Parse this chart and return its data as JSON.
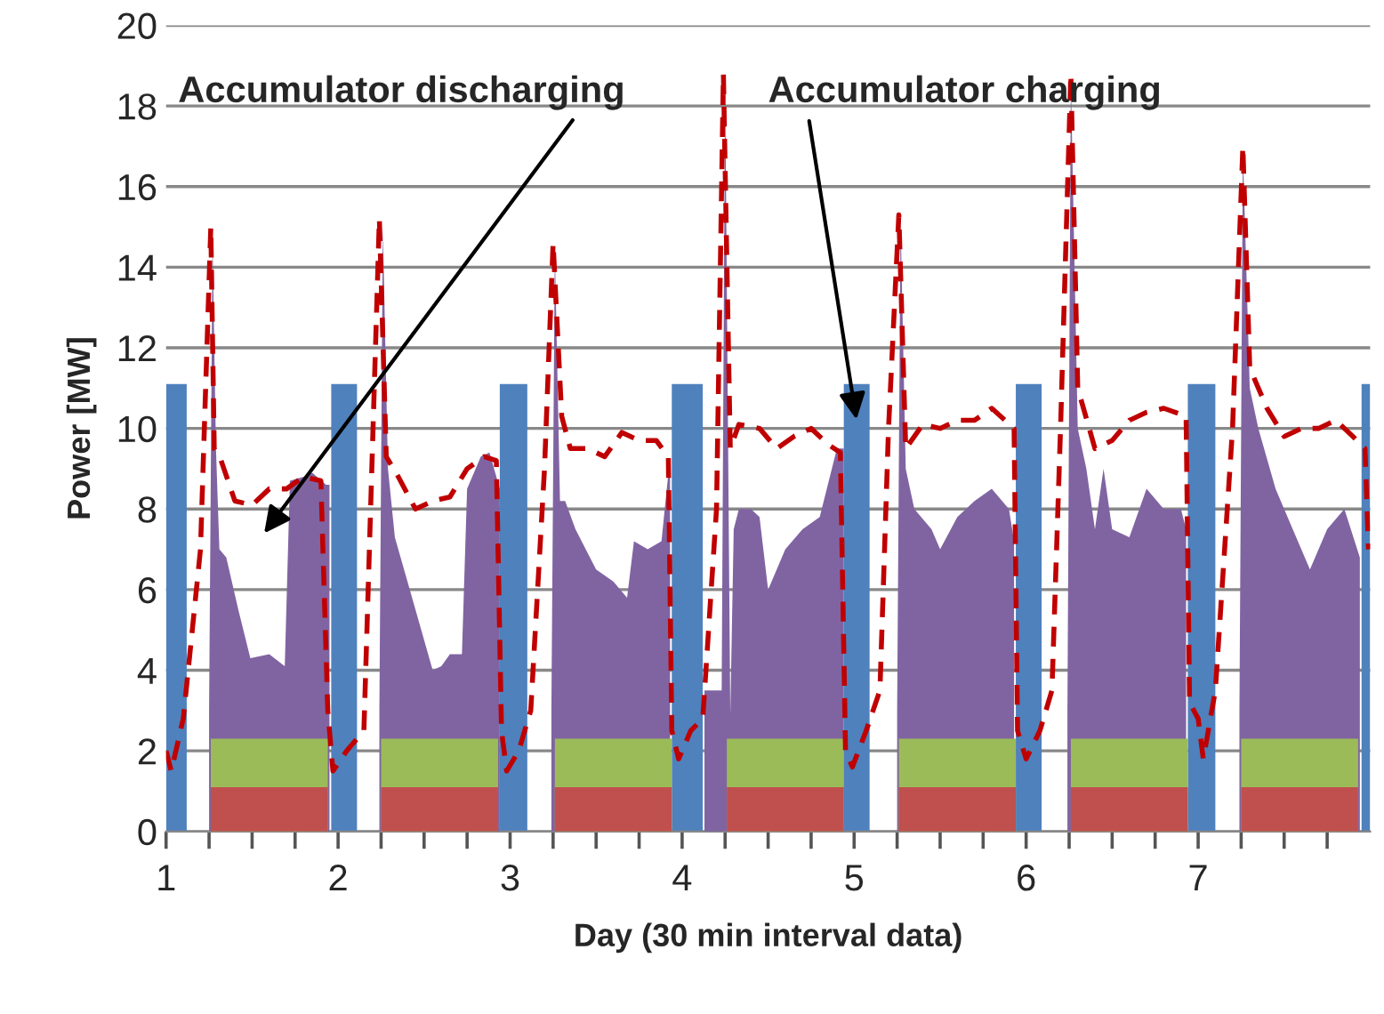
{
  "chart_data": {
    "type": "area",
    "xlabel": "Day (30 min interval data)",
    "ylabel": "Power [MW]",
    "xlim": [
      1,
      8
    ],
    "ylim": [
      0,
      20
    ],
    "yticks": [
      0,
      2,
      4,
      6,
      8,
      10,
      12,
      14,
      16,
      18,
      20
    ],
    "xticks": [
      1,
      {
        "value": 1.25,
        "label": null
      },
      {
        "value": 1.5,
        "label": null
      },
      {
        "value": 1.75,
        "label": null
      },
      2,
      {
        "value": 2.25,
        "label": null
      },
      {
        "value": 2.5,
        "label": null
      },
      {
        "value": 2.75,
        "label": null
      },
      3,
      {
        "value": 3.25,
        "label": null
      },
      {
        "value": 3.5,
        "label": null
      },
      {
        "value": 3.75,
        "label": null
      },
      4,
      {
        "value": 4.25,
        "label": null
      },
      {
        "value": 4.5,
        "label": null
      },
      {
        "value": 4.75,
        "label": null
      },
      5,
      {
        "value": 5.25,
        "label": null
      },
      {
        "value": 5.5,
        "label": null
      },
      {
        "value": 5.75,
        "label": null
      },
      6,
      {
        "value": 6.25,
        "label": null
      },
      {
        "value": 6.5,
        "label": null
      },
      {
        "value": 6.75,
        "label": null
      },
      7,
      {
        "value": 7.25,
        "label": null
      },
      {
        "value": 7.5,
        "label": null
      },
      {
        "value": 7.75,
        "label": null
      }
    ],
    "grid": "y",
    "line_style": "dashed",
    "series": [
      {
        "color": "#4f81bd",
        "x": [
          1.0,
          1.12,
          1.5,
          1.96,
          2.11,
          2.5,
          2.94,
          3.1,
          3.5,
          3.94,
          4.12,
          4.5,
          4.94,
          5.09,
          5.5,
          5.94,
          6.09,
          6.5,
          6.94,
          7.1,
          7.5,
          7.95,
          8.0
        ],
        "values": [
          11.1,
          11.1,
          null,
          11.1,
          11.1,
          null,
          11.1,
          11.1,
          null,
          11.1,
          11.1,
          null,
          11.1,
          11.1,
          null,
          11.1,
          11.1,
          null,
          11.1,
          11.1,
          null,
          11.1,
          11.1
        ]
      },
      {
        "color": "#8064a2",
        "x": [
          1.25,
          1.27,
          1.29,
          1.31,
          1.35,
          1.42,
          1.49,
          1.6,
          1.69,
          1.72,
          1.8,
          1.85,
          1.93,
          1.95,
          2.1,
          2.24,
          2.26,
          2.29,
          2.33,
          2.45,
          2.55,
          2.6,
          2.65,
          2.72,
          2.75,
          2.83,
          2.88,
          2.94,
          3.0,
          3.24,
          3.26,
          3.29,
          3.32,
          3.38,
          3.5,
          3.6,
          3.68,
          3.72,
          3.8,
          3.88,
          3.93,
          4.0,
          4.13,
          4.23,
          4.25,
          4.28,
          4.3,
          4.33,
          4.4,
          4.45,
          4.5,
          4.6,
          4.7,
          4.8,
          4.9,
          4.94,
          5.0,
          5.25,
          5.27,
          5.3,
          5.35,
          5.45,
          5.5,
          5.6,
          5.7,
          5.8,
          5.9,
          5.93,
          6.0,
          6.24,
          6.26,
          6.3,
          6.35,
          6.4,
          6.45,
          6.5,
          6.6,
          6.7,
          6.8,
          6.9,
          6.93,
          7.0,
          7.24,
          7.26,
          7.3,
          7.35,
          7.45,
          7.55,
          7.65,
          7.75,
          7.85,
          7.94
        ],
        "values": [
          3.0,
          14.7,
          9.5,
          7.0,
          6.8,
          5.5,
          4.3,
          4.4,
          4.1,
          8.7,
          8.8,
          8.9,
          8.6,
          8.6,
          null,
          3.0,
          15.0,
          9.0,
          7.3,
          5.5,
          4.0,
          4.1,
          4.4,
          4.4,
          8.5,
          9.3,
          9.4,
          8.5,
          null,
          3.0,
          14.5,
          8.2,
          8.2,
          7.5,
          6.5,
          6.2,
          5.8,
          7.2,
          7.0,
          7.2,
          9.3,
          null,
          3.5,
          3.5,
          18.8,
          2.9,
          7.5,
          8.0,
          8.0,
          7.8,
          6.0,
          7.0,
          7.5,
          7.8,
          9.5,
          9.5,
          null,
          3.0,
          15.2,
          9.0,
          8.0,
          7.5,
          7.0,
          7.8,
          8.2,
          8.5,
          8.0,
          7.2,
          null,
          3.0,
          18.7,
          10.0,
          9.0,
          7.5,
          9.0,
          7.5,
          7.3,
          8.5,
          8.0,
          8.0,
          7.5,
          null,
          3.0,
          16.9,
          11.0,
          10.0,
          8.5,
          7.5,
          6.5,
          7.5,
          8.0,
          6.8
        ]
      },
      {
        "color": "#9bbb59",
        "x": [
          1.26,
          1.94,
          2.1,
          2.25,
          2.93,
          3.1,
          3.26,
          3.94,
          4.1,
          4.26,
          4.94,
          5.1,
          5.26,
          5.94,
          6.1,
          6.26,
          6.94,
          7.1,
          7.25,
          7.93
        ],
        "values": [
          2.3,
          2.3,
          null,
          2.3,
          2.3,
          null,
          2.3,
          2.3,
          null,
          2.3,
          2.3,
          null,
          2.3,
          2.3,
          null,
          2.3,
          2.3,
          null,
          2.3,
          2.3
        ]
      },
      {
        "color": "#c0504d",
        "x": [
          1.26,
          1.94,
          2.1,
          2.25,
          2.93,
          3.1,
          3.26,
          3.94,
          4.1,
          4.26,
          4.94,
          5.1,
          5.26,
          5.94,
          6.1,
          6.26,
          6.94,
          7.1,
          7.25,
          7.93
        ],
        "values": [
          1.1,
          1.1,
          null,
          1.1,
          1.1,
          null,
          1.1,
          1.1,
          null,
          1.1,
          1.1,
          null,
          1.1,
          1.1,
          null,
          1.1,
          1.1,
          null,
          1.1,
          1.1
        ]
      },
      {
        "type": "line",
        "color": "#c00000",
        "x": [
          1.0,
          1.03,
          1.1,
          1.2,
          1.26,
          1.28,
          1.32,
          1.4,
          1.5,
          1.6,
          1.7,
          1.8,
          1.9,
          1.94,
          1.97,
          2.05,
          2.15,
          2.24,
          2.28,
          2.35,
          2.45,
          2.55,
          2.65,
          2.75,
          2.85,
          2.92,
          2.95,
          2.98,
          3.05,
          3.12,
          3.2,
          3.25,
          3.3,
          3.35,
          3.45,
          3.55,
          3.65,
          3.75,
          3.85,
          3.92,
          3.94,
          3.98,
          4.05,
          4.12,
          4.2,
          4.24,
          4.28,
          4.33,
          4.45,
          4.55,
          4.65,
          4.75,
          4.85,
          4.92,
          4.95,
          4.99,
          5.07,
          5.15,
          5.2,
          5.26,
          5.3,
          5.4,
          5.5,
          5.6,
          5.7,
          5.8,
          5.93,
          5.95,
          6.0,
          6.08,
          6.15,
          6.2,
          6.26,
          6.3,
          6.4,
          6.5,
          6.6,
          6.7,
          6.8,
          6.93,
          6.95,
          7.0,
          7.03,
          7.1,
          7.2,
          7.26,
          7.3,
          7.4,
          7.5,
          7.6,
          7.7,
          7.8,
          7.9,
          7.97,
          7.99
        ],
        "values": [
          2.0,
          1.5,
          2.8,
          7.0,
          15.0,
          9.5,
          9.2,
          8.2,
          8.1,
          8.5,
          8.5,
          8.8,
          8.7,
          3.0,
          1.5,
          2.0,
          2.5,
          15.2,
          9.3,
          8.8,
          8.0,
          8.2,
          8.3,
          9.0,
          9.3,
          9.2,
          2.5,
          1.5,
          2.0,
          3.0,
          9.0,
          14.6,
          10.3,
          9.5,
          9.5,
          9.3,
          9.9,
          9.7,
          9.7,
          9.3,
          2.5,
          1.8,
          2.5,
          2.8,
          8.0,
          18.8,
          9.5,
          10.1,
          10.0,
          9.5,
          9.8,
          10.0,
          9.6,
          9.4,
          2.0,
          1.6,
          2.5,
          3.5,
          10.0,
          15.3,
          9.5,
          10.1,
          10.0,
          10.2,
          10.2,
          10.5,
          10.0,
          2.5,
          1.8,
          2.5,
          3.5,
          10.0,
          18.8,
          11.0,
          9.5,
          9.7,
          10.2,
          10.4,
          10.5,
          10.3,
          3.2,
          2.8,
          1.8,
          3.5,
          10.0,
          17.0,
          11.5,
          10.5,
          9.8,
          10.0,
          10.0,
          10.2,
          9.8,
          9.5,
          7.0
        ]
      }
    ],
    "annotations": [
      "Accumulator discharging",
      "Accumulator charging"
    ]
  }
}
